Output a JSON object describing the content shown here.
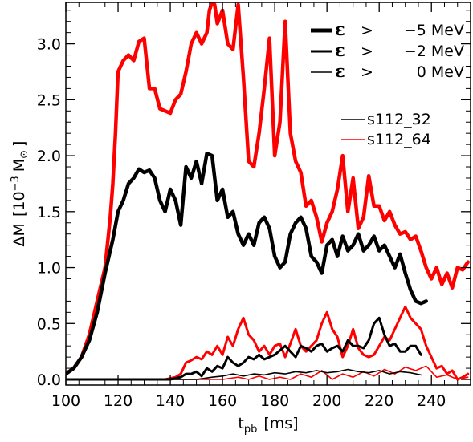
{
  "chart_data": {
    "type": "line",
    "xlabel_main": "t",
    "xlabel_sub": "pb",
    "xlabel_unit": "[ms]",
    "ylabel_main": "ΔM",
    "ylabel_unit_open": "[10",
    "ylabel_unit_exp": "−3",
    "ylabel_unit_mass": "M",
    "ylabel_unit_sun": "⊙",
    "ylabel_unit_close": "]",
    "xlim": [
      100,
      255
    ],
    "ylim": [
      -0.05,
      3.37
    ],
    "x_ticks": [
      100,
      120,
      140,
      160,
      180,
      200,
      220,
      240
    ],
    "x_tick_labels": [
      "100",
      "120",
      "140",
      "160",
      "180",
      "200",
      "220",
      "240"
    ],
    "y_ticks": [
      0.0,
      0.5,
      1.0,
      1.5,
      2.0,
      2.5,
      3.0
    ],
    "y_tick_labels": [
      "0.0",
      "0.5",
      "1.0",
      "1.5",
      "2.0",
      "2.5",
      "3.0"
    ],
    "grid": false,
    "energy_legend": {
      "placement": "top-right",
      "entries": [
        {
          "symbol": "ε",
          "op": ">",
          "value": "−5 MeV",
          "weight": "thick"
        },
        {
          "symbol": "ε",
          "op": ">",
          "value": "−2 MeV",
          "weight": "medium"
        },
        {
          "symbol": "ε",
          "op": ">",
          "value": "0 MeV",
          "weight": "thin"
        }
      ]
    },
    "model_legend": {
      "placement": "upper-right",
      "entries": [
        {
          "label": "s112_32",
          "color": "#000000"
        },
        {
          "label": "s112_64",
          "color": "#ff0000"
        }
      ]
    },
    "series": [
      {
        "name": "s112_64",
        "threshold": "ε > −5 MeV",
        "color": "#ff0000",
        "weight": "thick",
        "x": [
          100,
          103,
          106,
          109,
          112,
          115,
          117,
          118,
          119,
          120,
          122,
          124,
          126,
          128,
          130,
          132,
          134,
          136,
          138,
          140,
          142,
          144,
          146,
          148,
          150,
          152,
          154,
          155,
          156,
          157,
          158,
          160,
          162,
          164,
          166,
          168,
          170,
          172,
          174,
          176,
          178,
          180,
          182,
          184,
          186,
          188,
          190,
          192,
          194,
          196,
          198,
          200,
          202,
          204,
          206,
          208,
          210,
          212,
          214,
          216,
          218,
          220,
          222,
          224,
          226,
          228,
          230,
          232,
          234,
          236,
          238,
          240,
          242,
          244,
          246,
          248,
          250,
          252,
          254
        ],
        "y": [
          0.05,
          0.1,
          0.2,
          0.4,
          0.7,
          1.0,
          1.45,
          1.75,
          2.2,
          2.75,
          2.85,
          2.9,
          2.85,
          3.02,
          3.05,
          2.6,
          2.6,
          2.42,
          2.4,
          2.38,
          2.5,
          2.55,
          2.75,
          3.0,
          3.1,
          3.0,
          3.1,
          3.3,
          3.37,
          3.35,
          3.18,
          3.3,
          3.0,
          2.95,
          3.35,
          2.7,
          1.95,
          1.9,
          2.2,
          2.6,
          3.05,
          2.0,
          2.3,
          3.2,
          2.2,
          1.95,
          1.85,
          1.55,
          1.6,
          1.45,
          1.23,
          1.4,
          1.5,
          1.7,
          2.0,
          1.5,
          1.8,
          1.35,
          1.45,
          1.82,
          1.55,
          1.55,
          1.42,
          1.5,
          1.38,
          1.3,
          1.32,
          1.25,
          1.28,
          1.15,
          1.0,
          0.9,
          1.0,
          0.85,
          0.95,
          0.82,
          1.0,
          0.98,
          1.05
        ]
      },
      {
        "name": "s112_32",
        "threshold": "ε > −5 MeV",
        "color": "#000000",
        "weight": "thick",
        "x": [
          100,
          103,
          106,
          109,
          112,
          115,
          118,
          120,
          122,
          124,
          126,
          128,
          130,
          132,
          134,
          136,
          138,
          140,
          142,
          144,
          146,
          148,
          150,
          152,
          154,
          156,
          158,
          160,
          162,
          164,
          166,
          168,
          170,
          172,
          174,
          176,
          178,
          180,
          182,
          184,
          186,
          188,
          190,
          192,
          194,
          196,
          198,
          200,
          202,
          204,
          206,
          208,
          210,
          212,
          214,
          216,
          218,
          220,
          222,
          224,
          226,
          228,
          230,
          232,
          234,
          236,
          238
        ],
        "y": [
          0.05,
          0.1,
          0.2,
          0.35,
          0.6,
          0.95,
          1.25,
          1.5,
          1.6,
          1.75,
          1.8,
          1.88,
          1.85,
          1.87,
          1.8,
          1.6,
          1.5,
          1.7,
          1.6,
          1.38,
          1.9,
          1.8,
          1.95,
          1.75,
          2.02,
          2.0,
          1.6,
          1.7,
          1.45,
          1.5,
          1.3,
          1.2,
          1.3,
          1.2,
          1.4,
          1.45,
          1.35,
          1.1,
          1.0,
          1.05,
          1.3,
          1.4,
          1.45,
          1.35,
          1.1,
          1.05,
          0.95,
          1.2,
          1.25,
          1.1,
          1.28,
          1.15,
          1.2,
          1.3,
          1.15,
          1.2,
          1.28,
          1.15,
          1.2,
          1.1,
          1.0,
          1.12,
          0.95,
          0.8,
          0.7,
          0.68,
          0.7
        ]
      },
      {
        "name": "s112_64",
        "threshold": "ε > −2 MeV",
        "color": "#ff0000",
        "weight": "medium",
        "x": [
          100,
          120,
          130,
          138,
          142,
          144,
          146,
          148,
          150,
          152,
          154,
          156,
          158,
          160,
          162,
          164,
          166,
          168,
          170,
          172,
          174,
          176,
          178,
          180,
          182,
          184,
          186,
          188,
          190,
          192,
          194,
          196,
          198,
          200,
          202,
          204,
          206,
          208,
          210,
          212,
          214,
          216,
          218,
          220,
          222,
          224,
          226,
          228,
          230,
          232,
          234,
          236,
          238,
          240,
          242,
          244,
          246,
          248,
          250,
          252,
          254
        ],
        "y": [
          0.0,
          0.0,
          0.0,
          0.0,
          0.02,
          0.05,
          0.15,
          0.17,
          0.2,
          0.18,
          0.25,
          0.22,
          0.3,
          0.22,
          0.38,
          0.3,
          0.45,
          0.55,
          0.4,
          0.35,
          0.25,
          0.3,
          0.22,
          0.3,
          0.32,
          0.2,
          0.32,
          0.45,
          0.3,
          0.25,
          0.3,
          0.35,
          0.5,
          0.6,
          0.45,
          0.38,
          0.2,
          0.3,
          0.45,
          0.28,
          0.22,
          0.2,
          0.22,
          0.3,
          0.38,
          0.35,
          0.45,
          0.55,
          0.65,
          0.55,
          0.5,
          0.45,
          0.3,
          0.2,
          0.1,
          0.12,
          0.05,
          0.08,
          0.0,
          0.02,
          0.05
        ]
      },
      {
        "name": "s112_32",
        "threshold": "ε > −2 MeV",
        "color": "#000000",
        "weight": "medium",
        "x": [
          100,
          120,
          140,
          144,
          146,
          148,
          150,
          152,
          154,
          156,
          158,
          160,
          162,
          164,
          166,
          168,
          170,
          172,
          174,
          176,
          178,
          180,
          182,
          184,
          186,
          188,
          190,
          192,
          194,
          196,
          198,
          200,
          202,
          204,
          206,
          208,
          210,
          212,
          214,
          216,
          218,
          220,
          222,
          224,
          226,
          228,
          230,
          232,
          234,
          236
        ],
        "y": [
          0.0,
          0.0,
          0.0,
          0.02,
          0.05,
          0.05,
          0.07,
          0.03,
          0.1,
          0.07,
          0.12,
          0.1,
          0.2,
          0.15,
          0.12,
          0.15,
          0.2,
          0.18,
          0.22,
          0.18,
          0.2,
          0.22,
          0.26,
          0.3,
          0.25,
          0.2,
          0.3,
          0.28,
          0.25,
          0.3,
          0.32,
          0.25,
          0.28,
          0.3,
          0.25,
          0.35,
          0.3,
          0.3,
          0.28,
          0.35,
          0.5,
          0.55,
          0.4,
          0.3,
          0.32,
          0.25,
          0.25,
          0.3,
          0.3,
          0.22
        ]
      },
      {
        "name": "s112_64",
        "threshold": "ε > 0 MeV",
        "color": "#ff0000",
        "weight": "thin",
        "x": [
          100,
          140,
          150,
          160,
          166,
          170,
          174,
          178,
          182,
          186,
          190,
          194,
          198,
          202,
          206,
          210,
          214,
          218,
          222,
          226,
          230,
          234,
          238,
          242,
          246,
          250,
          254
        ],
        "y": [
          0.0,
          0.0,
          0.0,
          0.0,
          0.02,
          0.0,
          0.03,
          0.0,
          0.02,
          0.0,
          0.05,
          0.02,
          0.08,
          0.0,
          0.05,
          0.02,
          0.07,
          0.03,
          0.09,
          0.05,
          0.11,
          0.08,
          0.12,
          0.02,
          0.04,
          0.0,
          0.02
        ]
      },
      {
        "name": "s112_32",
        "threshold": "ε > 0 MeV",
        "color": "#000000",
        "weight": "thin",
        "x": [
          100,
          140,
          150,
          156,
          160,
          164,
          168,
          172,
          176,
          180,
          184,
          188,
          192,
          196,
          200,
          204,
          208,
          212,
          216,
          220,
          224,
          228,
          232,
          236
        ],
        "y": [
          0.0,
          0.0,
          0.0,
          0.02,
          0.03,
          0.05,
          0.03,
          0.05,
          0.04,
          0.06,
          0.05,
          0.07,
          0.06,
          0.08,
          0.06,
          0.07,
          0.09,
          0.07,
          0.06,
          0.08,
          0.05,
          0.07,
          0.06,
          0.04
        ]
      }
    ]
  }
}
